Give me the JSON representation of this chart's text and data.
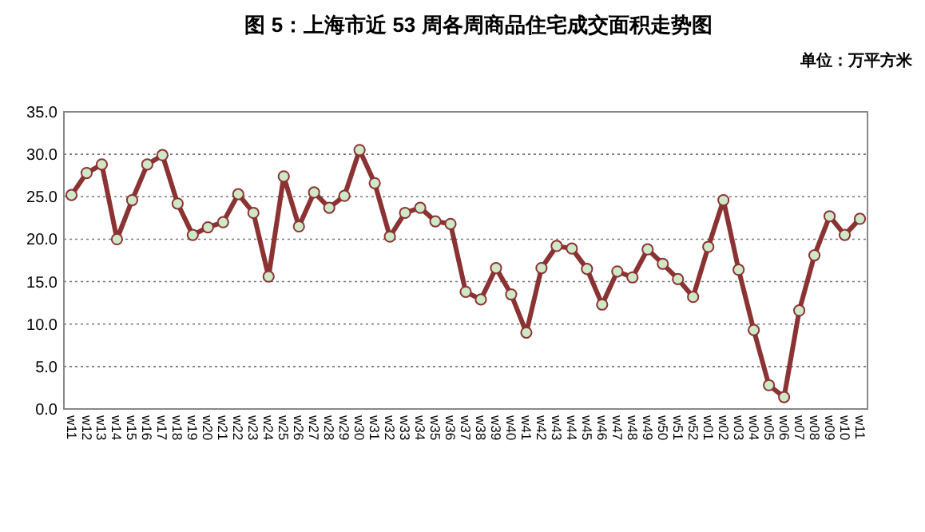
{
  "chart_data": {
    "type": "line",
    "title": "图 5：上海市近 53 周各周商品住宅成交面积走势图",
    "annotations": [
      "单位：万平方米"
    ],
    "categories": [
      "w11",
      "w12",
      "w13",
      "w14",
      "w15",
      "w16",
      "w17",
      "w18",
      "w19",
      "w20",
      "w21",
      "w22",
      "w23",
      "w24",
      "w25",
      "w26",
      "w27",
      "w28",
      "w29",
      "w30",
      "w31",
      "w32",
      "w33",
      "w34",
      "w35",
      "w36",
      "w37",
      "w38",
      "w39",
      "w40",
      "w41",
      "w42",
      "w43",
      "w44",
      "w45",
      "w46",
      "w47",
      "w48",
      "w49",
      "w50",
      "w51",
      "w52",
      "w01",
      "w02",
      "w03",
      "w04",
      "w05",
      "w06",
      "w07",
      "w08",
      "w09",
      "w10",
      "w11"
    ],
    "series": [
      {
        "color": "#8b3333",
        "values": [
          25.2,
          27.8,
          28.8,
          20.0,
          24.6,
          28.8,
          29.9,
          24.2,
          20.5,
          21.4,
          22.0,
          25.3,
          23.1,
          15.6,
          27.4,
          21.5,
          25.5,
          23.7,
          25.1,
          30.5,
          26.6,
          20.3,
          23.1,
          23.7,
          22.1,
          21.8,
          13.8,
          12.9,
          16.6,
          13.5,
          9.0,
          16.6,
          19.2,
          18.9,
          16.5,
          12.3,
          16.2,
          15.5,
          18.8,
          17.1,
          15.3,
          13.2,
          19.1,
          24.6,
          16.4,
          9.3,
          2.8,
          1.4,
          11.6,
          18.1,
          22.7,
          20.5,
          22.4
        ]
      }
    ],
    "ylim": [
      0,
      35
    ],
    "yticks": [
      {
        "value": 0,
        "label": "0.0"
      },
      {
        "value": 5,
        "label": "5.0"
      },
      {
        "value": 10,
        "label": "10.0"
      },
      {
        "value": 15,
        "label": "15.0"
      },
      {
        "value": 20,
        "label": "20.0"
      },
      {
        "value": 25,
        "label": "25.0"
      },
      {
        "value": 30,
        "label": "30.0"
      },
      {
        "value": 35,
        "label": "35.0"
      }
    ],
    "grid": "y",
    "marker": "circle",
    "line_style": "solid"
  }
}
